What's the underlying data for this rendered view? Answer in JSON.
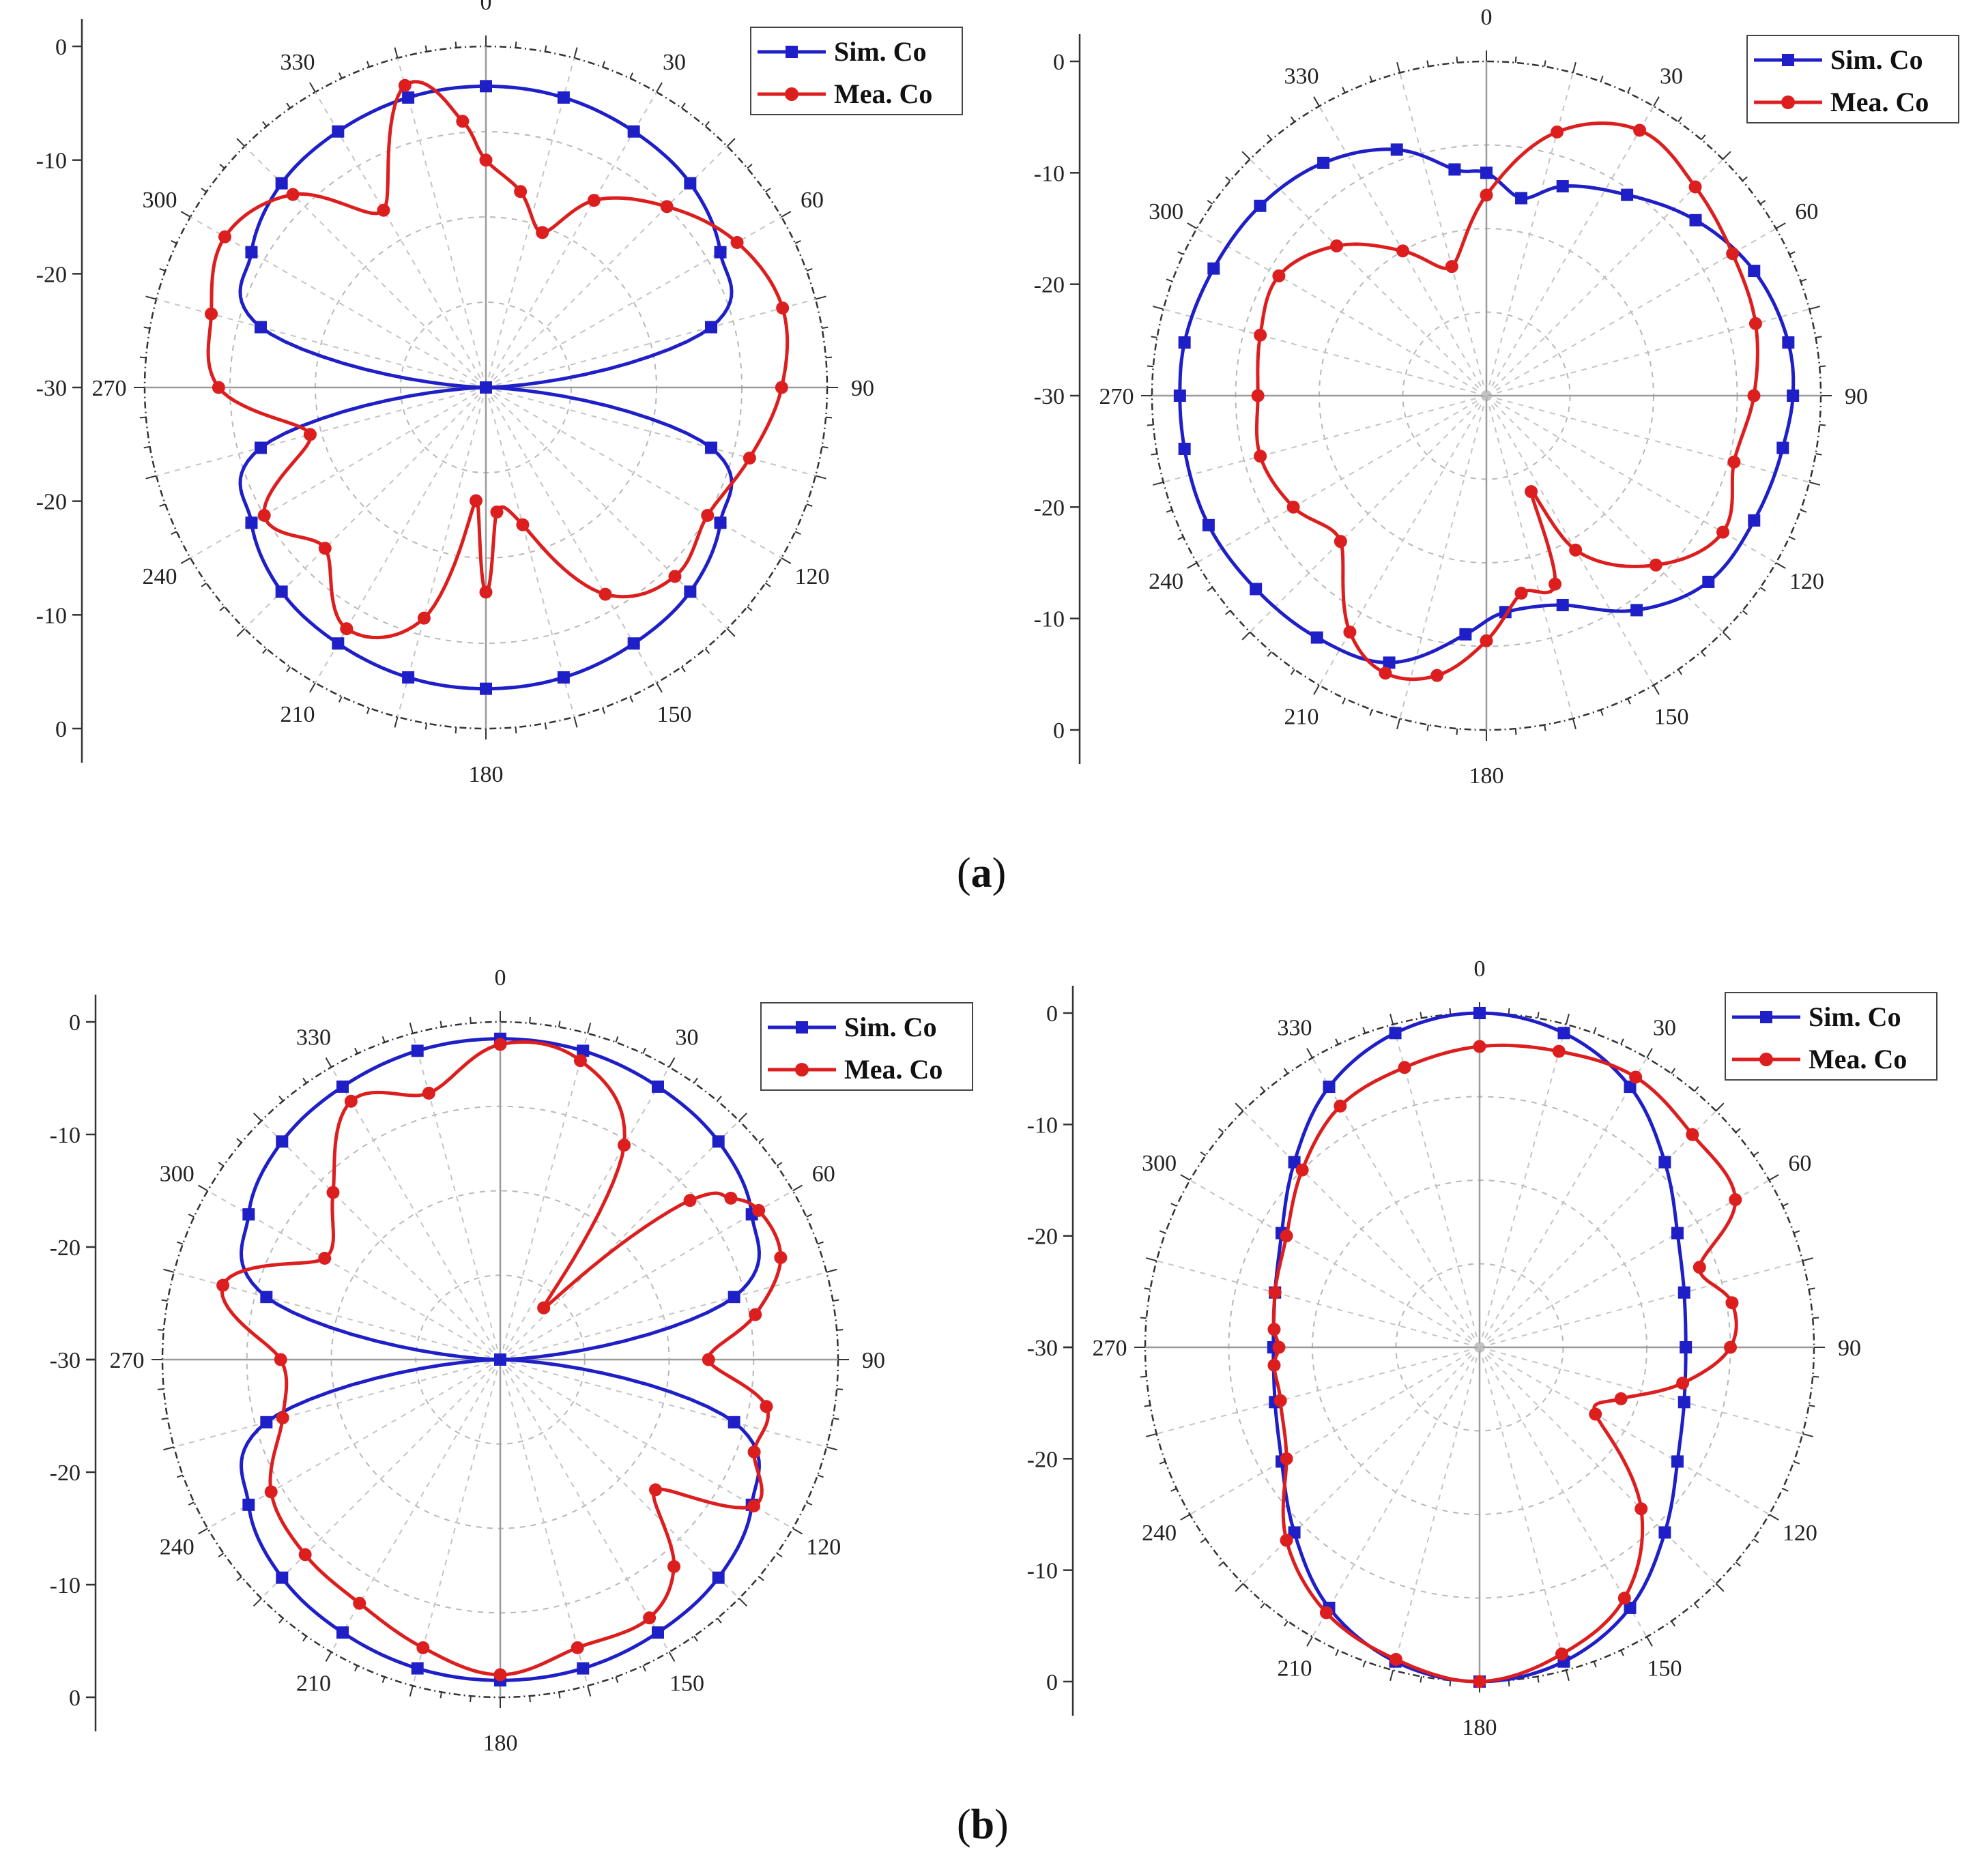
{
  "figure": {
    "label_a": "a",
    "label_b": "b"
  },
  "chart_data": [
    {
      "type": "polar-line",
      "panel": "a",
      "position": "left",
      "theta_ticks": [
        "0",
        "30",
        "60",
        "90",
        "120",
        "150",
        "180",
        "210",
        "240",
        "270",
        "300",
        "330"
      ],
      "r_ticks_upper": [
        "0",
        "-10",
        "-20",
        "-30"
      ],
      "r_ticks_lower": [
        "-30",
        "-20",
        "-10",
        "0"
      ],
      "rlim": [
        -30,
        0
      ],
      "legend": [
        "Sim. Co",
        "Mea. Co"
      ],
      "series": [
        {
          "name": "Sim. Co",
          "color": "#1f1fc8",
          "marker": "square",
          "theta": [
            0,
            15,
            30,
            45,
            60,
            75,
            90,
            105,
            120,
            135,
            150,
            165,
            180,
            195,
            210,
            225,
            240,
            255,
            270,
            285,
            300,
            315,
            330,
            345
          ],
          "r": [
            -3.5,
            -3.6,
            -4.0,
            -4.6,
            -6.2,
            -9.5,
            -30,
            -9.5,
            -6.2,
            -4.6,
            -4.0,
            -3.6,
            -3.5,
            -3.6,
            -4.0,
            -4.6,
            -6.2,
            -9.5,
            -30,
            -9.5,
            -6.2,
            -4.6,
            -4.0,
            -3.6
          ]
        },
        {
          "name": "Mea. Co",
          "color": "#dc1e1e",
          "marker": "circle",
          "theta": [
            0,
            10,
            20,
            30,
            45,
            60,
            75,
            90,
            105,
            120,
            135,
            150,
            165,
            175,
            180,
            185,
            195,
            210,
            225,
            240,
            255,
            270,
            285,
            300,
            315,
            330,
            345,
            355
          ],
          "r": [
            -10.0,
            -12.5,
            -15.5,
            -11.0,
            -7.5,
            -4.5,
            -3.0,
            -4.0,
            -6.0,
            -7.5,
            -6.5,
            -9.0,
            -17.5,
            -19.0,
            -12.0,
            -20.0,
            -9.0,
            -5.5,
            -10.0,
            -7.5,
            -14.0,
            -6.5,
            -5.0,
            -3.5,
            -6.0,
            -12.0,
            -2.5,
            -6.5
          ]
        }
      ]
    },
    {
      "type": "polar-line",
      "panel": "a",
      "position": "right",
      "theta_ticks": [
        "0",
        "30",
        "60",
        "90",
        "120",
        "150",
        "180",
        "210",
        "240",
        "270",
        "300",
        "330"
      ],
      "r_ticks_upper": [
        "0",
        "-10",
        "-20",
        "-30"
      ],
      "r_ticks_lower": [
        "-30",
        "-20",
        "-10",
        "0"
      ],
      "rlim": [
        -30,
        0
      ],
      "legend": [
        "Sim. Co",
        "Mea. Co"
      ],
      "series": [
        {
          "name": "Sim. Co",
          "color": "#1f1fc8",
          "marker": "square",
          "theta": [
            0,
            10,
            20,
            35,
            50,
            65,
            80,
            90,
            100,
            115,
            130,
            145,
            160,
            175,
            185,
            200,
            215,
            230,
            245,
            260,
            270,
            280,
            295,
            310,
            325,
            340,
            352
          ],
          "r": [
            -10.0,
            -12.0,
            -10.0,
            -8.0,
            -5.5,
            -3.5,
            -2.5,
            -2.5,
            -3.0,
            -3.5,
            -4.0,
            -6.5,
            -10.0,
            -10.5,
            -8.5,
            -4.5,
            -3.5,
            -3.0,
            -2.5,
            -2.5,
            -2.5,
            -2.5,
            -3.0,
            -3.5,
            -4.5,
            -6.5,
            -9.5
          ]
        },
        {
          "name": "Mea. Co",
          "color": "#dc1e1e",
          "marker": "circle",
          "theta": [
            0,
            15,
            30,
            45,
            60,
            75,
            90,
            105,
            120,
            135,
            150,
            155,
            160,
            170,
            180,
            190,
            200,
            210,
            225,
            240,
            255,
            270,
            285,
            300,
            315,
            330,
            345
          ],
          "r": [
            -12.0,
            -5.5,
            -2.5,
            -3.5,
            -4.5,
            -5.0,
            -6.0,
            -7.0,
            -5.5,
            -8.5,
            -14.0,
            -20.5,
            -12.0,
            -12.0,
            -8.0,
            -4.5,
            -3.5,
            -5.5,
            -11.5,
            -10.0,
            -9.0,
            -9.5,
            -9.0,
            -8.5,
            -11.0,
            -15.0,
            -18.0
          ]
        }
      ]
    },
    {
      "type": "polar-line",
      "panel": "b",
      "position": "left",
      "theta_ticks": [
        "0",
        "30",
        "60",
        "90",
        "120",
        "150",
        "180",
        "210",
        "240",
        "270",
        "300",
        "330"
      ],
      "r_ticks_upper": [
        "0",
        "-10",
        "-20",
        "-30"
      ],
      "r_ticks_lower": [
        "-20",
        "-10",
        "0"
      ],
      "rlim": [
        -30,
        0
      ],
      "legend": [
        "Sim. Co",
        "Mea. Co"
      ],
      "series": [
        {
          "name": "Sim. Co",
          "color": "#1f1fc8",
          "marker": "square",
          "theta": [
            0,
            15,
            30,
            45,
            60,
            75,
            90,
            105,
            120,
            135,
            150,
            165,
            180,
            195,
            210,
            225,
            240,
            255,
            270,
            285,
            300,
            315,
            330,
            345
          ],
          "r": [
            -1.5,
            -1.6,
            -2.0,
            -2.6,
            -4.2,
            -8.5,
            -30,
            -8.5,
            -4.2,
            -2.6,
            -2.0,
            -1.6,
            -1.5,
            -1.6,
            -2.0,
            -2.6,
            -4.2,
            -8.5,
            -30,
            -8.5,
            -4.2,
            -2.6,
            -2.0,
            -1.6
          ]
        },
        {
          "name": "Mea. Co",
          "color": "#dc1e1e",
          "marker": "circle",
          "theta": [
            0,
            15,
            30,
            40,
            50,
            55,
            60,
            70,
            80,
            90,
            100,
            110,
            120,
            130,
            140,
            150,
            165,
            180,
            195,
            210,
            225,
            240,
            255,
            270,
            285,
            300,
            315,
            330,
            345
          ],
          "r": [
            -2.0,
            -2.5,
            -8.0,
            -24.0,
            -8.0,
            -5.0,
            -3.5,
            -3.5,
            -7.0,
            -11.5,
            -6.0,
            -6.0,
            -4.0,
            -12.0,
            -6.0,
            -3.5,
            -3.5,
            -2.0,
            -3.5,
            -5.0,
            -5.5,
            -6.5,
            -10.0,
            -10.5,
            -4.5,
            -12.0,
            -9.0,
            -3.5,
            -5.5
          ]
        }
      ]
    },
    {
      "type": "polar-line",
      "panel": "b",
      "position": "right",
      "theta_ticks": [
        "0",
        "30",
        "60",
        "90",
        "120",
        "150",
        "180",
        "210",
        "240",
        "270",
        "300",
        "330"
      ],
      "r_ticks_upper": [
        "0",
        "-10",
        "-20",
        "-30"
      ],
      "r_ticks_lower": [
        "-20",
        "-10",
        "0"
      ],
      "rlim": [
        -30,
        0
      ],
      "legend": [
        "Sim. Co",
        "Mea. Co"
      ],
      "series": [
        {
          "name": "Sim. Co",
          "color": "#1f1fc8",
          "marker": "square",
          "theta": [
            0,
            15,
            30,
            45,
            60,
            75,
            90,
            105,
            120,
            135,
            150,
            165,
            180,
            195,
            210,
            225,
            240,
            255,
            270,
            285,
            300,
            315,
            330,
            345
          ],
          "r": [
            0.0,
            -0.8,
            -3.0,
            -6.5,
            -9.5,
            -11.0,
            -11.5,
            -11.0,
            -9.5,
            -6.5,
            -3.0,
            -0.8,
            0.0,
            -0.8,
            -3.0,
            -6.5,
            -9.5,
            -11.0,
            -11.5,
            -11.0,
            -9.5,
            -6.5,
            -3.0,
            -0.8
          ]
        },
        {
          "name": "Mea. Co",
          "color": "#dc1e1e",
          "marker": "circle",
          "theta": [
            0,
            15,
            30,
            45,
            60,
            70,
            80,
            90,
            100,
            110,
            120,
            135,
            150,
            165,
            180,
            195,
            210,
            225,
            240,
            255,
            265,
            270,
            275,
            285,
            300,
            315,
            330,
            345
          ],
          "r": [
            -3.0,
            -2.5,
            -2.0,
            -3.0,
            -3.5,
            -9.0,
            -7.0,
            -7.5,
            -11.5,
            -16.5,
            -18.0,
            -9.5,
            -4.0,
            -1.5,
            0.0,
            -1.0,
            -2.5,
            -5.5,
            -10.0,
            -11.5,
            -11.5,
            -12.0,
            -11.5,
            -11.0,
            -10.0,
            -7.5,
            -5.0,
            -4.0
          ]
        }
      ]
    }
  ]
}
